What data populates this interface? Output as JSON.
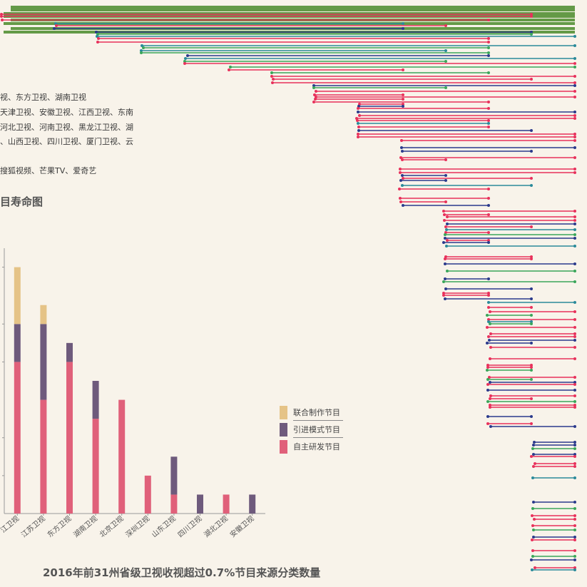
{
  "intro_lines": [
    "视、东方卫视、湖南卫视",
    "天津卫视、安徽卫视、江西卫视、东南",
    "河北卫视、河南卫视、黑龙江卫视、湖",
    "、山西卫视、四川卫视、厦门卫视、云",
    "搜狐视频、芒果TV、爱奇艺"
  ],
  "section_title": "目寿命图",
  "colors": {
    "background": "#f8f3ea",
    "self_developed": "#e0607a",
    "imported": "#6e5a7c",
    "joint": "#e5c387",
    "axis": "#999999"
  },
  "chart_data": {
    "type": "bar",
    "stacked": true,
    "title": "2016年前31州省级卫视收视超过0.7%节目来源分类数量",
    "xlabel": "",
    "ylabel": "",
    "ylim": [
      0,
      14
    ],
    "grid": false,
    "legend_position": "right",
    "categories": [
      "江卫视",
      "江苏卫视",
      "东方卫视",
      "湖南卫视",
      "北京卫视",
      "深圳卫视",
      "山东卫视",
      "四川卫视",
      "湖北卫视",
      "安徽卫视"
    ],
    "series": [
      {
        "name": "自主研发节目",
        "color": "#e0607a",
        "values": [
          8,
          6,
          8,
          5,
          6,
          2,
          1,
          0,
          1,
          0
        ]
      },
      {
        "name": "引进模式节目",
        "color": "#6e5a7c",
        "values": [
          2,
          4,
          1,
          2,
          0,
          0,
          2,
          1,
          0,
          1
        ]
      },
      {
        "name": "联合制作节目",
        "color": "#e5c387",
        "values": [
          3,
          1,
          0,
          0,
          0,
          0,
          0,
          0,
          0,
          0
        ]
      }
    ],
    "legend": [
      "联合制作节目",
      "引进模式节目",
      "自主研发节目"
    ]
  }
}
